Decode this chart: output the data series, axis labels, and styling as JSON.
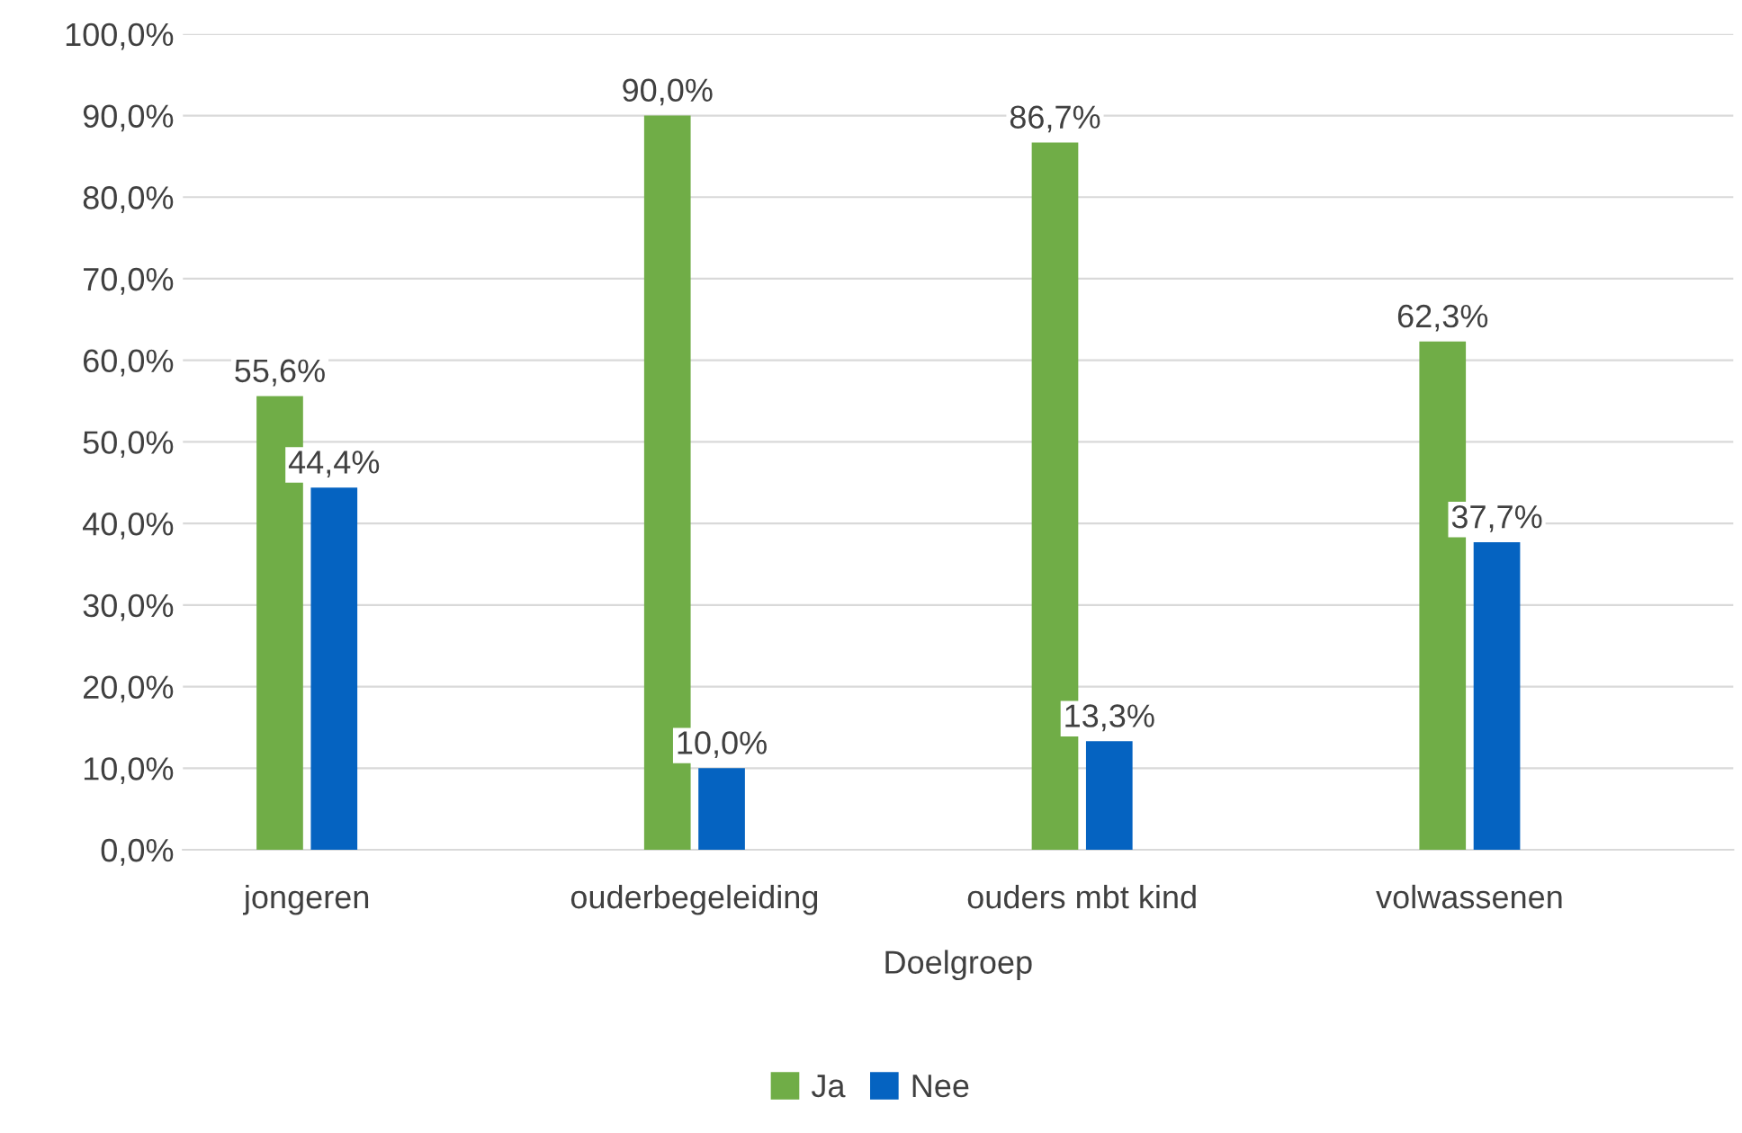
{
  "chart_data": {
    "type": "bar",
    "xlabel": "Doelgroep",
    "categories": [
      "jongeren",
      "ouderbegeleiding",
      "ouders mbt kind",
      "volwassenen"
    ],
    "series": [
      {
        "name": "Ja",
        "color": "#70ad47",
        "values": [
          55.6,
          90.0,
          86.7,
          62.3
        ],
        "value_labels": [
          "55,6%",
          "90,0%",
          "86,7%",
          "62,3%"
        ]
      },
      {
        "name": "Nee",
        "color": "#0563c1",
        "values": [
          44.4,
          10.0,
          13.3,
          37.7
        ],
        "value_labels": [
          "44,4%",
          "10,0%",
          "13,3%",
          "37,7%"
        ]
      }
    ],
    "ylim": [
      0,
      100
    ],
    "yticks": [
      {
        "value": 0,
        "label": "0,0%"
      },
      {
        "value": 10,
        "label": "10,0%"
      },
      {
        "value": 20,
        "label": "20,0%"
      },
      {
        "value": 30,
        "label": "30,0%"
      },
      {
        "value": 40,
        "label": "40,0%"
      },
      {
        "value": 50,
        "label": "50,0%"
      },
      {
        "value": 60,
        "label": "60,0%"
      },
      {
        "value": 70,
        "label": "70,0%"
      },
      {
        "value": 80,
        "label": "80,0%"
      },
      {
        "value": 90,
        "label": "90,0%"
      },
      {
        "value": 100,
        "label": "100,0%"
      }
    ],
    "grid": "y",
    "legend": "bottom"
  }
}
